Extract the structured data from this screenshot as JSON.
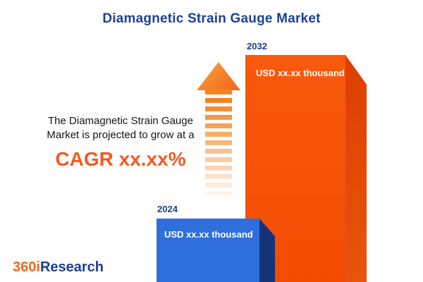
{
  "title": "Diamagnetic Strain Gauge Market",
  "description": {
    "line1": "The Diamagnetic Strain Gauge",
    "line2": "Market is projected to grow at a",
    "cagr": "CAGR xx.xx%"
  },
  "chart_data": {
    "type": "bar",
    "categories": [
      "2024",
      "2032"
    ],
    "values": [
      null,
      null
    ],
    "value_labels": [
      "USD xx.xx thousand",
      "USD xx.xx thousand"
    ],
    "title": "Diamagnetic Strain Gauge Market",
    "xlabel": "",
    "ylabel": "",
    "legend": "none",
    "grid": false,
    "annotations": [
      "growth arrow between 2024 and 2032 bars"
    ],
    "colors": {
      "bar_2024_front": "#2e6fdb",
      "bar_2024_side": "#16337a",
      "bar_2032_front": "#f4500a",
      "bar_2032_side": "#dd3f00",
      "accent_orange": "#f15a22",
      "brand_navy": "#1b3f8f"
    }
  },
  "logo": {
    "part1": "360i",
    "part2": "Research"
  }
}
